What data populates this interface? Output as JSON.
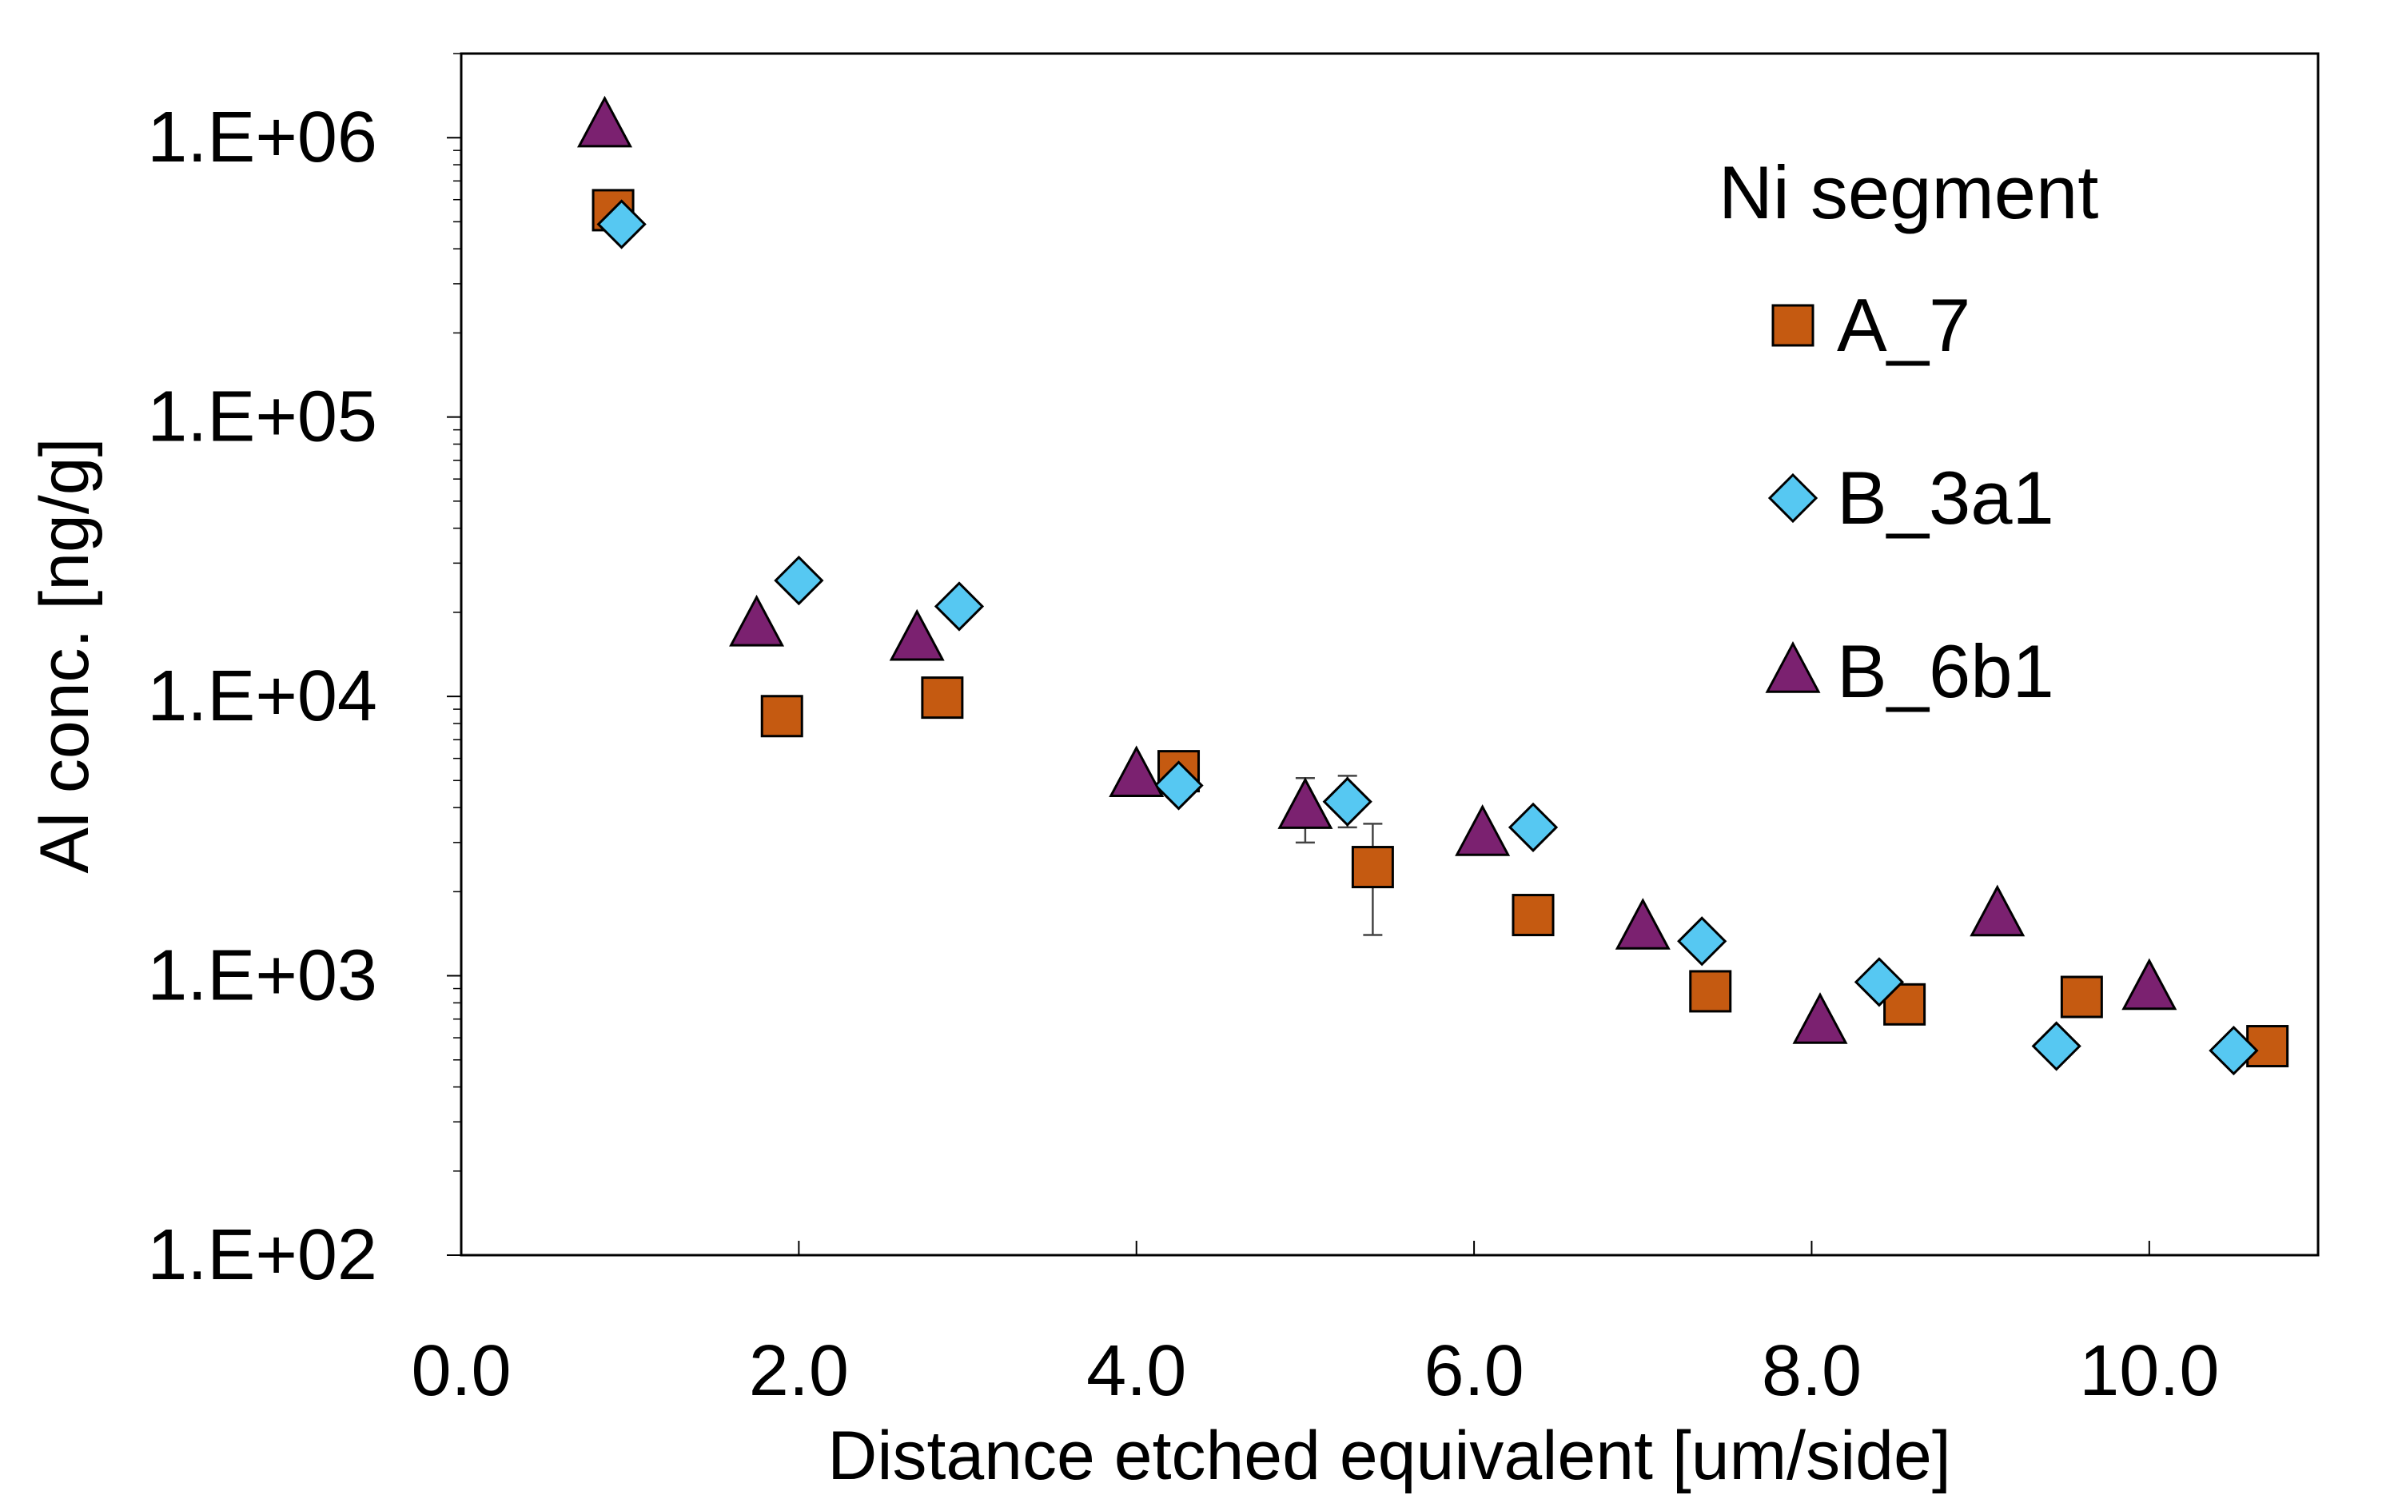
{
  "chart_data": {
    "type": "scatter",
    "title": "",
    "xlabel": "Distance etched equivalent [um/side]",
    "ylabel": "Al conc. [ng/g]",
    "xlim": [
      0,
      11
    ],
    "ylim": [
      100,
      2000000
    ],
    "yscale": "log",
    "x_ticks": [
      0,
      2,
      4,
      6,
      8,
      10
    ],
    "x_tick_labels": [
      "0.0",
      "2.0",
      "4.0",
      "6.0",
      "8.0",
      "10.0"
    ],
    "y_ticks": [
      100,
      1000,
      10000,
      100000,
      1000000
    ],
    "y_tick_labels": [
      "1.E+02",
      "1.E+03",
      "1.E+04",
      "1.E+05",
      "1.E+06"
    ],
    "grid": false,
    "legend": {
      "title": "Ni segment",
      "position": "top-right"
    },
    "series": [
      {
        "name": "A_7",
        "marker": "square",
        "color": "#C55A11",
        "points": [
          {
            "x": 0.9,
            "y": 550000
          },
          {
            "x": 1.9,
            "y": 8500
          },
          {
            "x": 2.85,
            "y": 9900
          },
          {
            "x": 4.25,
            "y": 5400
          },
          {
            "x": 5.4,
            "y": 2450,
            "err_low": 1400,
            "err_high": 3500
          },
          {
            "x": 6.35,
            "y": 1650
          },
          {
            "x": 7.4,
            "y": 880
          },
          {
            "x": 8.55,
            "y": 790
          },
          {
            "x": 9.6,
            "y": 840
          },
          {
            "x": 10.7,
            "y": 560
          }
        ]
      },
      {
        "name": "B_3a1",
        "marker": "diamond",
        "color": "#56C8F2",
        "points": [
          {
            "x": 0.95,
            "y": 490000
          },
          {
            "x": 2.0,
            "y": 26000
          },
          {
            "x": 2.95,
            "y": 21000
          },
          {
            "x": 4.25,
            "y": 4800
          },
          {
            "x": 5.25,
            "y": 4200,
            "err_low": 3400,
            "err_high": 5200
          },
          {
            "x": 6.35,
            "y": 3400
          },
          {
            "x": 7.35,
            "y": 1330
          },
          {
            "x": 8.4,
            "y": 950
          },
          {
            "x": 9.45,
            "y": 560
          },
          {
            "x": 10.5,
            "y": 540
          }
        ]
      },
      {
        "name": "B_6b1",
        "marker": "triangle",
        "color": "#7B2170",
        "points": [
          {
            "x": 0.85,
            "y": 1100000
          },
          {
            "x": 1.75,
            "y": 18000
          },
          {
            "x": 2.7,
            "y": 16000
          },
          {
            "x": 4.0,
            "y": 5200
          },
          {
            "x": 5.0,
            "y": 4000,
            "err_low": 3000,
            "err_high": 5100
          },
          {
            "x": 6.05,
            "y": 3200
          },
          {
            "x": 7.0,
            "y": 1480
          },
          {
            "x": 8.05,
            "y": 680
          },
          {
            "x": 9.1,
            "y": 1650
          },
          {
            "x": 10.0,
            "y": 900
          }
        ]
      }
    ]
  }
}
